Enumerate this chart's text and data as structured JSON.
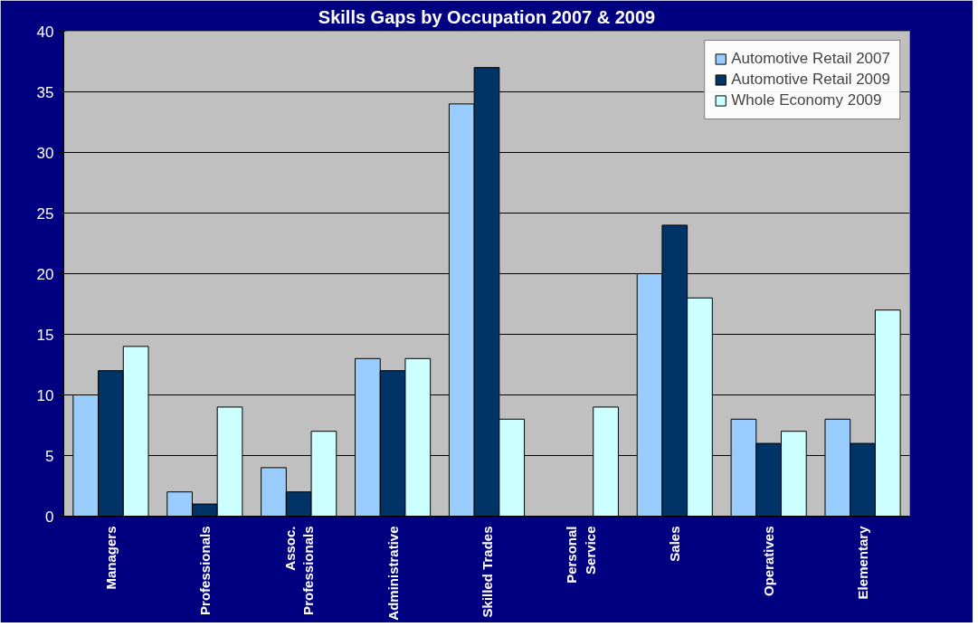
{
  "chart_data": {
    "type": "bar",
    "title": "Skills Gaps by Occupation 2007 & 2009",
    "categories": [
      "Managers",
      "Professionals",
      "Assoc.\nProfessionals",
      "Administrative",
      "Skilled Trades",
      "Personal\nService",
      "Sales",
      "Operatives",
      "Elementary"
    ],
    "series": [
      {
        "name": "Automotive Retail 2007",
        "color": "#99ccff",
        "values": [
          10,
          2,
          4,
          13,
          34,
          null,
          20,
          8,
          8
        ]
      },
      {
        "name": "Automotive Retail 2009",
        "color": "#003366",
        "values": [
          12,
          1,
          2,
          12,
          37,
          null,
          24,
          6,
          6
        ]
      },
      {
        "name": "Whole Economy 2009",
        "color": "#ccffff",
        "values": [
          14,
          9,
          7,
          13,
          8,
          9,
          18,
          7,
          17
        ]
      }
    ],
    "ylim": [
      0,
      40
    ],
    "yticks": [
      0,
      5,
      10,
      15,
      20,
      25,
      30,
      35,
      40
    ],
    "grid": "y",
    "legend": "top right"
  }
}
